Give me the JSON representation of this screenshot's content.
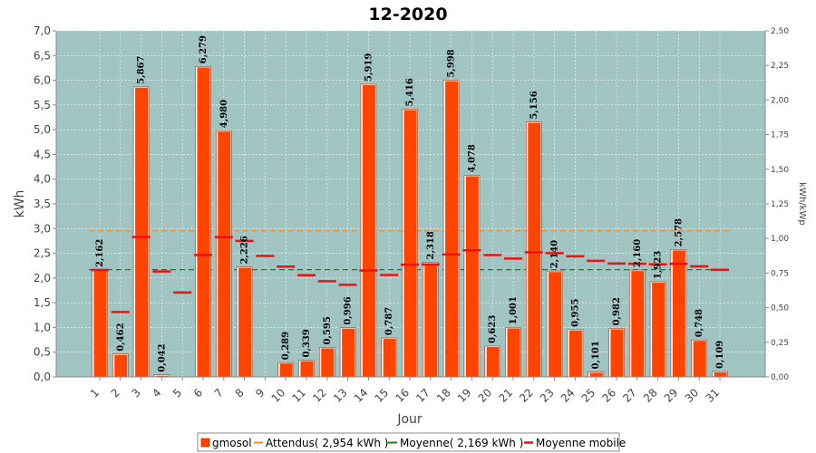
{
  "chart_data": {
    "type": "bar",
    "title": "12-2020",
    "xlabel": "Jour",
    "ylabel": "kWh",
    "ylabel_right": "kWh/kWp",
    "ylim": [
      0,
      7.0
    ],
    "ylim_right": [
      0,
      2.5
    ],
    "y_ticks": [
      "0,0",
      "0,5",
      "1,0",
      "1,5",
      "2,0",
      "2,5",
      "3,0",
      "3,5",
      "4,0",
      "4,5",
      "5,0",
      "5,5",
      "6,0",
      "6,5",
      "7,0"
    ],
    "y_ticks_right": [
      "0,00",
      "0,25",
      "0,50",
      "0,75",
      "1,00",
      "1,25",
      "1,50",
      "1,75",
      "2,00",
      "2,25",
      "2,50"
    ],
    "categories": [
      "1",
      "2",
      "3",
      "4",
      "5",
      "6",
      "7",
      "8",
      "9",
      "10",
      "11",
      "12",
      "13",
      "14",
      "15",
      "16",
      "17",
      "18",
      "19",
      "20",
      "21",
      "22",
      "23",
      "24",
      "25",
      "26",
      "27",
      "28",
      "29",
      "30",
      "31"
    ],
    "series": [
      {
        "name": "gmosol",
        "color": "#ff4400",
        "values": [
          2.162,
          0.462,
          5.867,
          0.042,
          null,
          6.279,
          4.98,
          2.226,
          null,
          0.289,
          0.339,
          0.595,
          0.996,
          5.919,
          0.787,
          5.416,
          2.318,
          5.998,
          4.078,
          0.623,
          1.001,
          5.156,
          2.14,
          0.955,
          0.101,
          0.982,
          2.16,
          1.923,
          2.578,
          0.748,
          0.109
        ],
        "labels": [
          "2,162",
          "0,462",
          "5,867",
          "0,042",
          "",
          "6,279",
          "4,980",
          "2,226",
          "",
          "0,289",
          "0,339",
          "0,595",
          "0,996",
          "5,919",
          "0,787",
          "5,416",
          "2,318",
          "5,998",
          "4,078",
          "0,623",
          "1,001",
          "5,156",
          "2,140",
          "0,955",
          "0,101",
          "0,982",
          "2,160",
          "1,923",
          "2,578",
          "0,748",
          "0,109"
        ]
      },
      {
        "name": "Moyenne mobile",
        "color": "#ee1111",
        "values": [
          2.162,
          1.312,
          2.83,
          2.133,
          1.706,
          2.468,
          2.827,
          2.752,
          2.446,
          2.23,
          2.058,
          1.936,
          1.863,
          2.153,
          2.062,
          2.271,
          2.274,
          2.477,
          2.561,
          2.464,
          2.394,
          2.519,
          2.503,
          2.439,
          2.347,
          2.294,
          2.289,
          2.276,
          2.286,
          2.235,
          2.166
        ]
      }
    ],
    "reference_lines": [
      {
        "name": "Attendus( 2,954 kWh )",
        "value": 2.954,
        "color": "#ff8c1a",
        "style": "dashed"
      },
      {
        "name": "Moyenne( 2,169 kWh )",
        "value": 2.169,
        "color": "#118811",
        "style": "dashed"
      }
    ],
    "legend": {
      "position": "bottom",
      "items": [
        "gmosol",
        "Attendus( 2,954 kWh )",
        "Moyenne( 2,169 kWh )",
        "Moyenne mobile"
      ]
    },
    "plot_background": "#9fc4c1",
    "grid": true
  }
}
